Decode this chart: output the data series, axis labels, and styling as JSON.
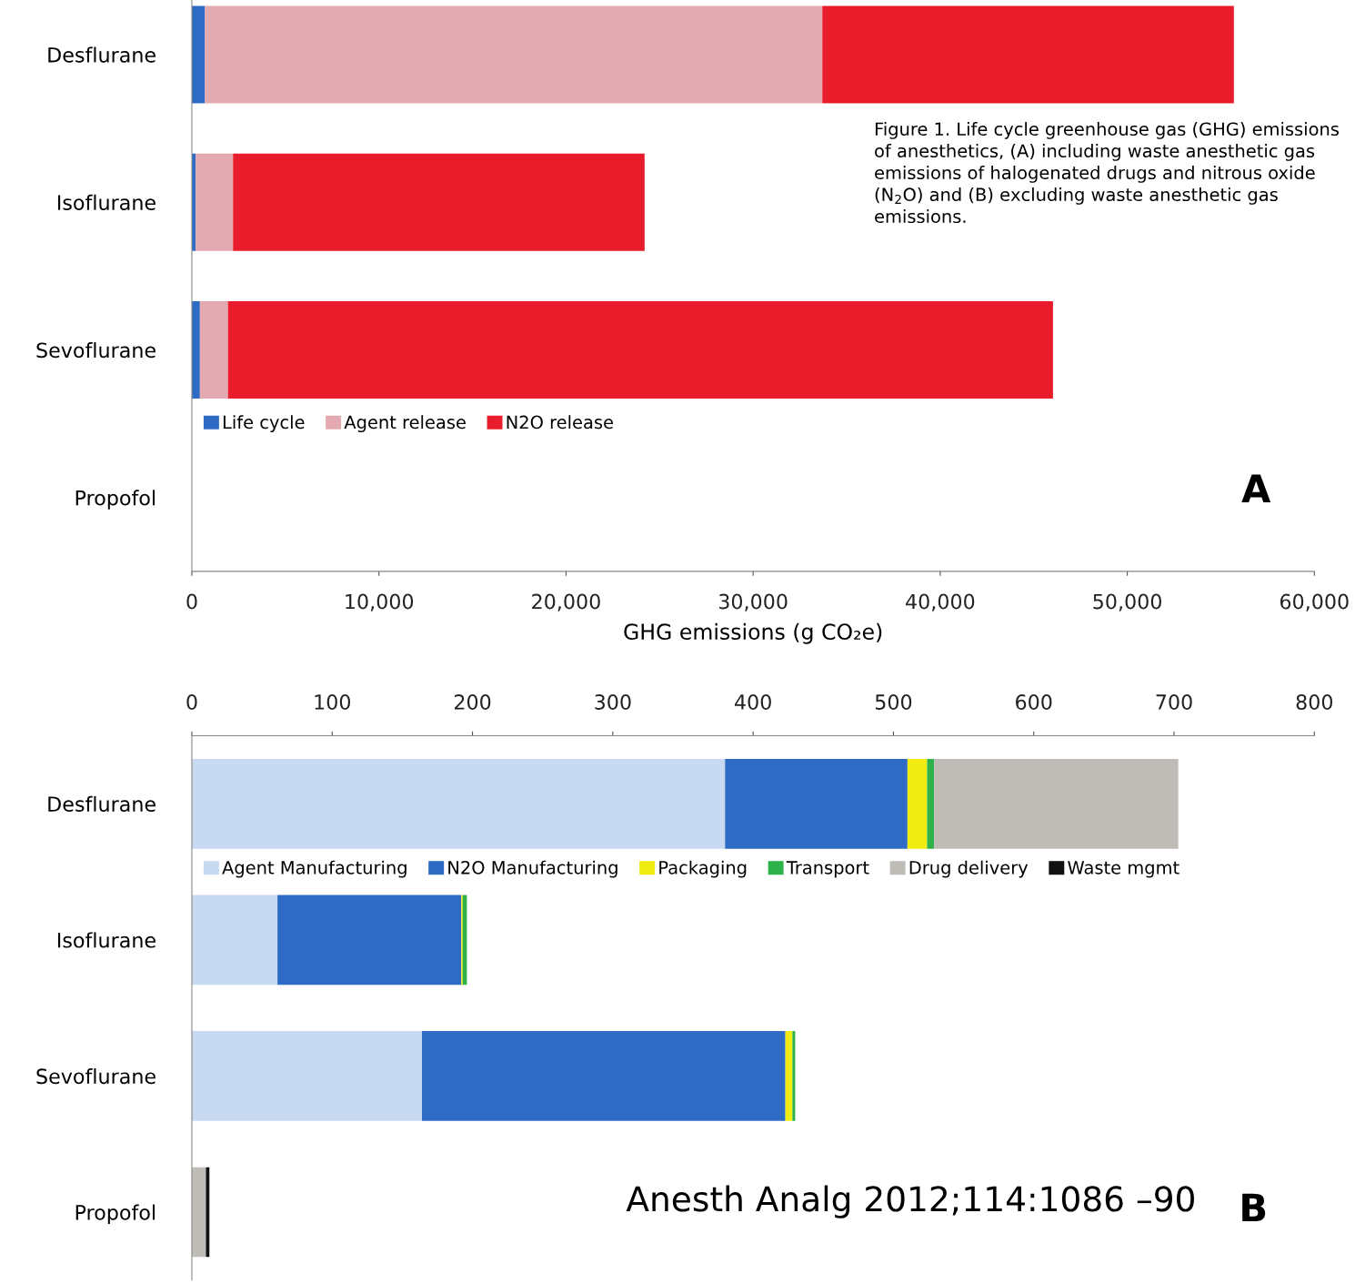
{
  "chart_data": [
    {
      "type": "bar",
      "orientation": "horizontal",
      "stacked": true,
      "categories": [
        "Desflurane",
        "Isoflurane",
        "Sevoflurane",
        "Propofol"
      ],
      "series": [
        {
          "name": "Life cycle",
          "color": "#2e6bc4",
          "values": [
            700,
            200,
            430,
            0
          ]
        },
        {
          "name": "Agent release",
          "color": "#e4aab2",
          "values": [
            33000,
            2000,
            1500,
            0
          ]
        },
        {
          "name": "N2O release",
          "color": "#e81c2a",
          "values": [
            22000,
            22000,
            44100,
            0
          ]
        }
      ],
      "xlim": [
        0,
        60000
      ],
      "xticks": [
        0,
        {
          "value": 10000,
          "label": "10,000"
        },
        {
          "value": 20000,
          "label": "20,000"
        },
        {
          "value": 30000,
          "label": "30,000"
        },
        {
          "value": 40000,
          "label": "40,000"
        },
        {
          "value": 50000,
          "label": "50,000"
        },
        {
          "value": 60000,
          "label": "60,000"
        }
      ],
      "xlabel": "GHG emissions (g CO₂e)",
      "legend": "center left",
      "annotations": [
        "Figure 1. Life cycle greenhouse gas (GHG) emissions of anesthetics, (A) including waste anesthetic gas emissions of halogenated drugs and nitrous oxide (N$_{2}$O) and (B) excluding waste anesthetic gas emissions.",
        "A"
      ]
    },
    {
      "type": "bar",
      "orientation": "horizontal",
      "stacked": true,
      "categories": [
        "Desflurane",
        "Isoflurane",
        "Sevoflurane",
        "Propofol"
      ],
      "series": [
        {
          "name": "Agent Manufacturing",
          "color": "#c8d9f2",
          "axis": "x2",
          "values": [
            380,
            61,
            164,
            0
          ]
        },
        {
          "name": "N2O Manufacturing",
          "color": "#2e6bc4",
          "axis": "x2",
          "values": [
            130,
            131,
            259,
            0
          ]
        },
        {
          "name": "Packaging",
          "color": "#f0ec12",
          "axis": "x2",
          "values": [
            14,
            1,
            5,
            0
          ]
        },
        {
          "name": "Transport",
          "color": "#2db34a",
          "axis": "x2",
          "values": [
            5,
            3,
            2,
            0
          ]
        },
        {
          "name": "Drug delivery",
          "color": "#bfbcb8",
          "axis": "x2",
          "values": [
            174,
            0,
            0,
            10
          ]
        },
        {
          "name": "Waste mgmt",
          "color": "#111111",
          "axis": "x2",
          "values": [
            0,
            0,
            0,
            2.5
          ]
        }
      ],
      "x2lim": [
        0,
        800
      ],
      "x2ticks": [
        0,
        100,
        200,
        300,
        400,
        500,
        600,
        700,
        800
      ],
      "legend": "upper left",
      "annotations": [
        "Anesth Analg 2012;114:1086 –90",
        "B"
      ]
    }
  ]
}
